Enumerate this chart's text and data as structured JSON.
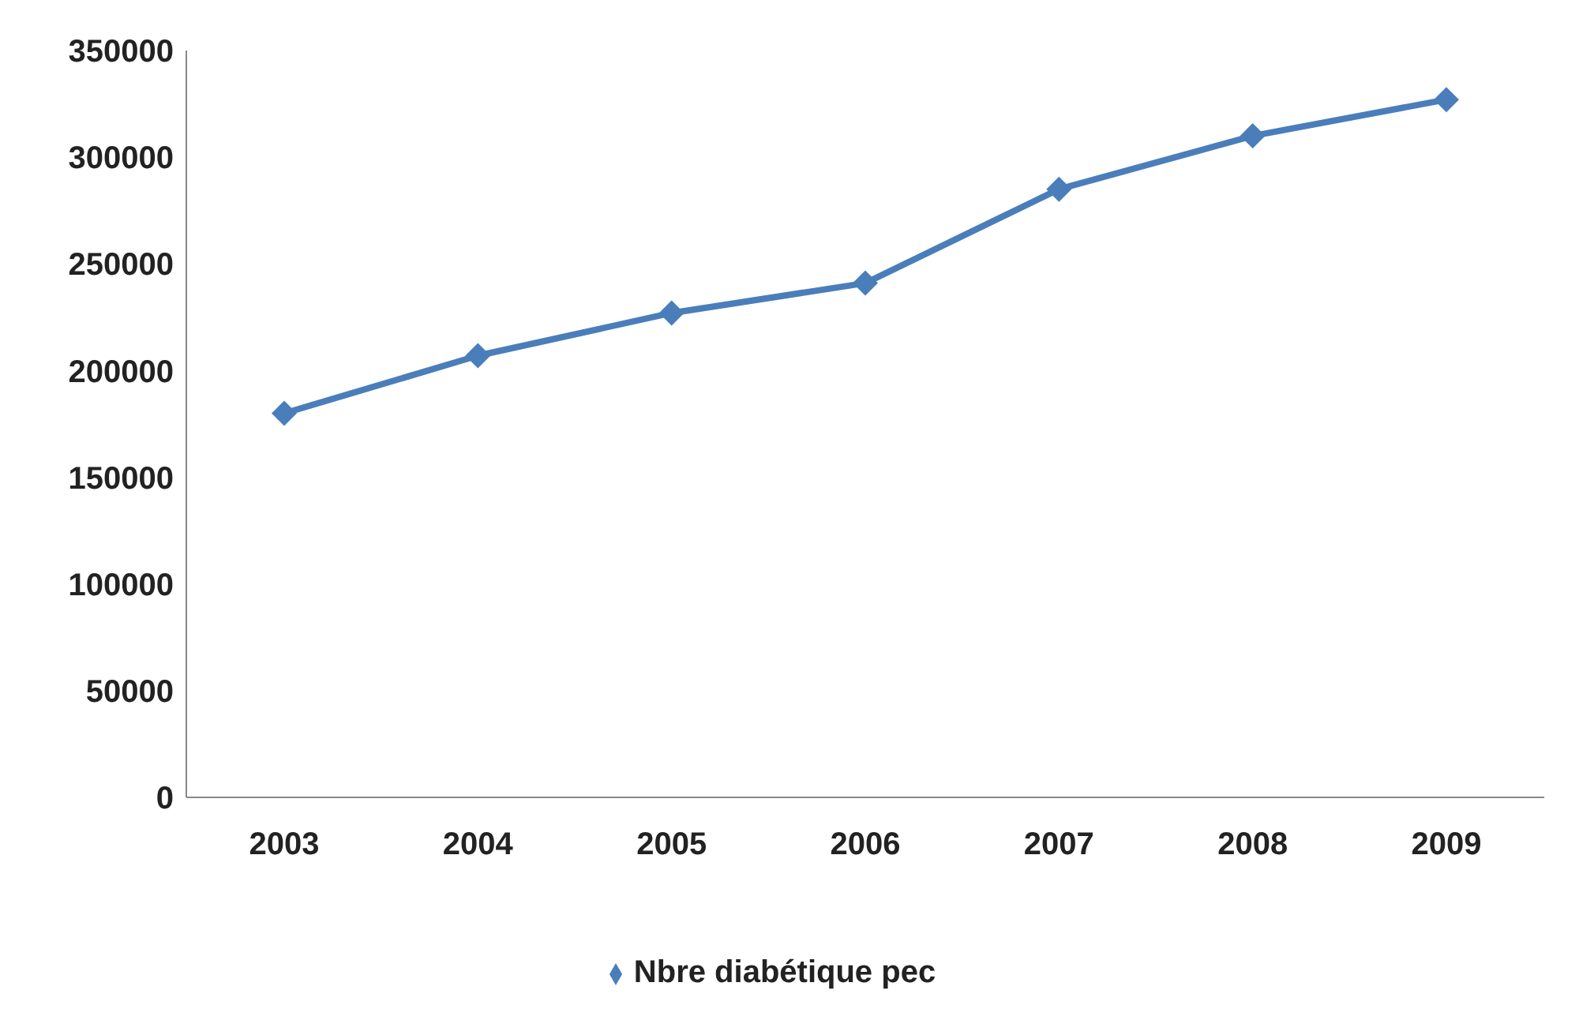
{
  "chart_data": {
    "type": "line",
    "categories": [
      "2003",
      "2004",
      "2005",
      "2006",
      "2007",
      "2008",
      "2009"
    ],
    "series": [
      {
        "name": "Nbre diabétique pec",
        "color": "#4a7ebb",
        "values": [
          180000,
          207000,
          227000,
          241000,
          285000,
          310000,
          327000
        ]
      }
    ],
    "ylim": [
      0,
      350000
    ],
    "yticks": [
      0,
      50000,
      100000,
      150000,
      200000,
      250000,
      300000,
      350000
    ],
    "grid": false,
    "legend": "bottom",
    "marker": "diamond",
    "line_style": "solid"
  }
}
